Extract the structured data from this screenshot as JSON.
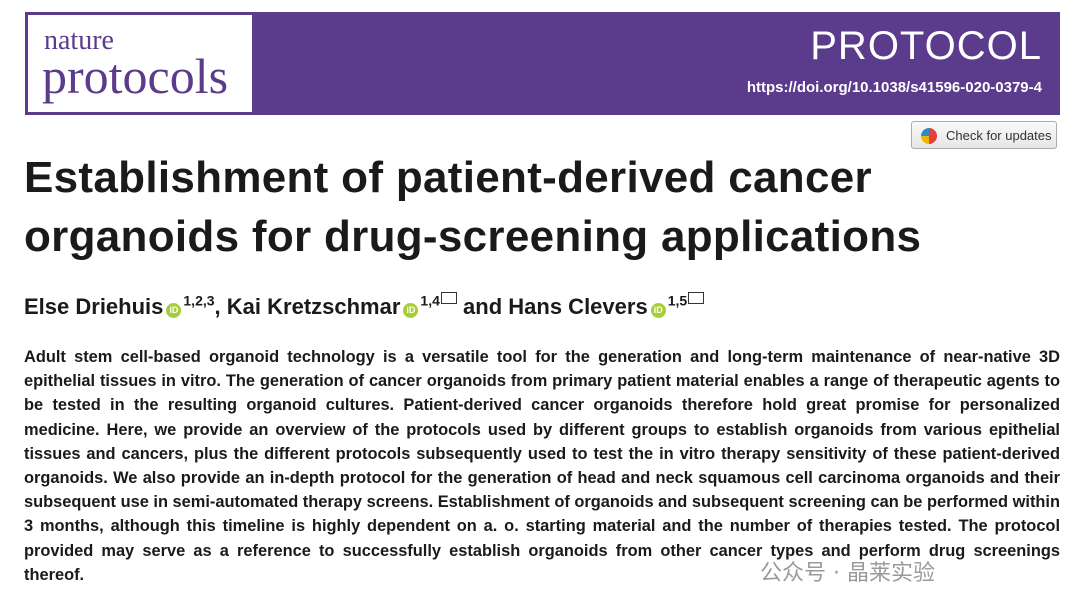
{
  "header": {
    "journal_small": "nature",
    "journal_large": "protocols",
    "article_type": "PROTOCOL",
    "doi": "https://doi.org/10.1038/s41596-020-0379-4",
    "update_button": "Check for updates"
  },
  "title": "Establishment of patient-derived cancer organoids for drug-screening applications",
  "authors": [
    {
      "name": "Else Driehuis",
      "affiliations": "1,2,3"
    },
    {
      "name": "Kai Kretzschmar",
      "affiliations": "1,4"
    },
    {
      "name": "Hans Clevers",
      "affiliations": "1,5"
    }
  ],
  "author_separators": [
    ",",
    "and"
  ],
  "abstract": "Adult stem cell-based organoid technology is a versatile tool for the generation and long-term maintenance of near-native 3D epithelial tissues in vitro. The generation of cancer organoids from primary patient material enables a range of therapeutic agents to be tested in the resulting organoid cultures. Patient-derived cancer organoids therefore hold great promise for personalized medicine. Here, we provide an overview of the protocols used by different groups to establish organoids from various epithelial tissues and cancers, plus the different protocols subsequently used to test the in vitro therapy sensitivity of these patient-derived organoids. We also provide an in-depth protocol for the generation of head and neck squamous cell carcinoma organoids and their subsequent use in semi-automated therapy screens. Establishment of organoids and subsequent screening can be performed within 3 months, although this timeline is highly dependent on a. o. starting material and the number of therapies tested. The protocol provided may serve as a reference to successfully establish organoids from other cancer types and perform drug screenings thereof.",
  "watermark": "公众号 · 晶莱实验"
}
